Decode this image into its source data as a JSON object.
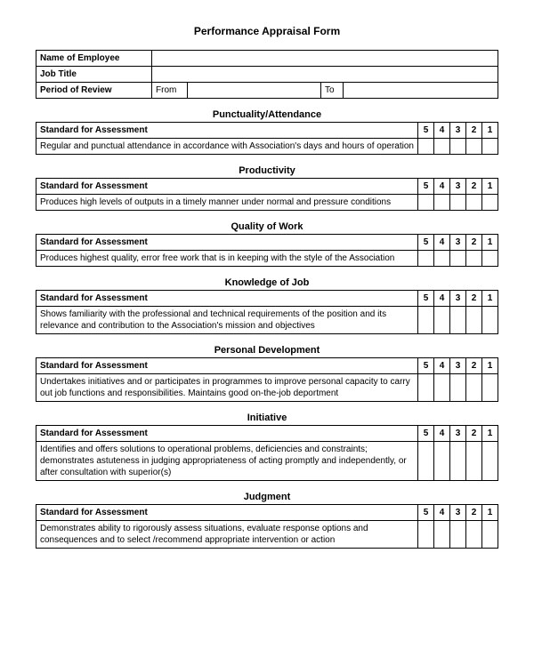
{
  "title": "Performance Appraisal Form",
  "header": {
    "name_label": "Name of Employee",
    "jobtitle_label": "Job Title",
    "period_label": "Period of Review",
    "from_label": "From",
    "to_label": "To"
  },
  "std_label": "Standard for Assessment",
  "ratings": [
    "5",
    "4",
    "3",
    "2",
    "1"
  ],
  "sections": [
    {
      "title": "Punctuality/Attendance",
      "desc": "Regular and punctual attendance in accordance with Association's days and hours of operation"
    },
    {
      "title": "Productivity",
      "desc": "Produces high levels of outputs in a timely manner under normal and pressure conditions"
    },
    {
      "title": "Quality of Work",
      "desc": "Produces highest quality, error free work that is in keeping with the style of the Association"
    },
    {
      "title": "Knowledge of Job",
      "desc": "Shows familiarity with the professional and technical requirements of the position and its relevance and contribution to the Association's mission and objectives"
    },
    {
      "title": "Personal Development",
      "desc": "Undertakes initiatives and or participates in programmes to improve personal capacity to carry out job functions and responsibilities.  Maintains good on-the-job deportment"
    },
    {
      "title": "Initiative",
      "desc": "Identifies and offers solutions to operational problems, deficiencies and constraints; demonstrates astuteness in judging appropriateness of acting promptly and independently, or after consultation with superior(s)"
    },
    {
      "title": "Judgment",
      "desc": "Demonstrates ability to rigorously assess situations, evaluate response options and consequences and to select /recommend appropriate intervention or action"
    }
  ]
}
